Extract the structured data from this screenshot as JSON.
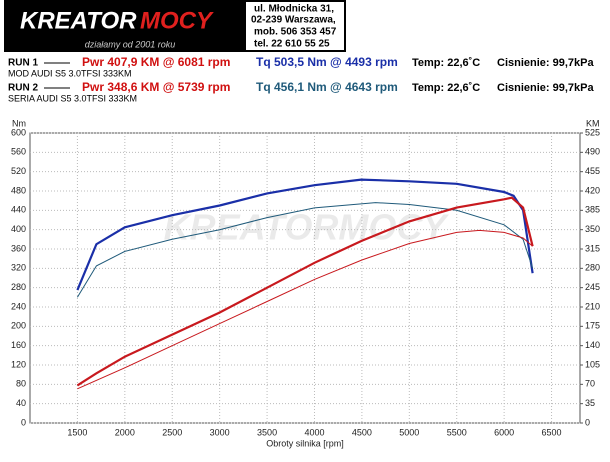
{
  "header": {
    "brand_a": "KREATOR",
    "brand_b": "MOCY",
    "slogan": "działamy od 2001 roku",
    "address": [
      "ul. Młodnicka 31,",
      "02-239  Warszawa,",
      "mob.  506 353 457",
      "tel.  22 610 55 25"
    ]
  },
  "runs": [
    {
      "label": "RUN 1",
      "pwr": "Pwr  407,9 KM @ 6081 rpm",
      "tq": "Tq 503,5 Nm @ 4493 rpm",
      "temp": "Temp: 22,6˚C",
      "pressure": "Cisnienie: 99,7kPa",
      "car": "MOD AUDI S5 3.0TFSI 333KM"
    },
    {
      "label": "RUN 2",
      "pwr": "Pwr  348,6 KM @ 5739 rpm",
      "tq": "Tq 456,1 Nm @ 4643 rpm",
      "temp": "Temp: 22,6˚C",
      "pressure": "Cisnienie: 99,7kPa",
      "car": "SERIA AUDI S5 3.0TFSI 333KM"
    }
  ],
  "chart_data": {
    "type": "line",
    "x_label": "Obroty silnika [rpm]",
    "y_label": "Nm",
    "y2_label": "KM",
    "watermark": "KREATORMOCY",
    "xlim": [
      1000,
      6800
    ],
    "xticks": [
      1500,
      2000,
      2500,
      3000,
      3500,
      4000,
      4500,
      5000,
      5500,
      6000,
      6500
    ],
    "ylim": [
      0,
      600
    ],
    "yticks": [
      0,
      40,
      80,
      120,
      160,
      200,
      240,
      280,
      320,
      360,
      400,
      440,
      480,
      520,
      560,
      600
    ],
    "y2lim": [
      0,
      525
    ],
    "y2ticks": [
      0,
      35,
      70,
      105,
      140,
      175,
      210,
      245,
      280,
      315,
      350,
      385,
      420,
      455,
      490,
      525
    ],
    "grid": true,
    "series": [
      {
        "name": "Tq RUN 1",
        "color": "#1a2fa8",
        "axis": "y",
        "x": [
          1500,
          1700,
          2000,
          2500,
          3000,
          3500,
          4000,
          4493,
          5000,
          5500,
          6000,
          6100,
          6200,
          6300
        ],
        "values": [
          275,
          370,
          405,
          430,
          450,
          475,
          492,
          503.5,
          500,
          495,
          478,
          470,
          440,
          310
        ]
      },
      {
        "name": "Tq RUN 2",
        "color": "#1f5a7a",
        "axis": "y",
        "x": [
          1500,
          1700,
          2000,
          2500,
          3000,
          3500,
          4000,
          4643,
          5000,
          5500,
          6000,
          6200,
          6300
        ],
        "values": [
          260,
          325,
          355,
          380,
          400,
          425,
          445,
          456.1,
          452,
          440,
          410,
          380,
          320
        ]
      },
      {
        "name": "Pwr RUN 1",
        "color": "#c8191e",
        "axis": "y2",
        "x": [
          1500,
          1700,
          2000,
          2500,
          3000,
          3500,
          4000,
          4500,
          5000,
          5500,
          6000,
          6081,
          6200,
          6300
        ],
        "values": [
          68,
          90,
          120,
          160,
          200,
          245,
          290,
          330,
          365,
          390,
          405,
          407.9,
          390,
          320
        ]
      },
      {
        "name": "Pwr RUN 2",
        "color": "#c8191e",
        "axis": "y2",
        "x": [
          1500,
          2000,
          2500,
          3000,
          3500,
          4000,
          4500,
          5000,
          5500,
          5739,
          6000,
          6200,
          6300
        ],
        "values": [
          62,
          100,
          140,
          180,
          220,
          260,
          295,
          325,
          345,
          348.6,
          345,
          335,
          320
        ]
      }
    ]
  }
}
